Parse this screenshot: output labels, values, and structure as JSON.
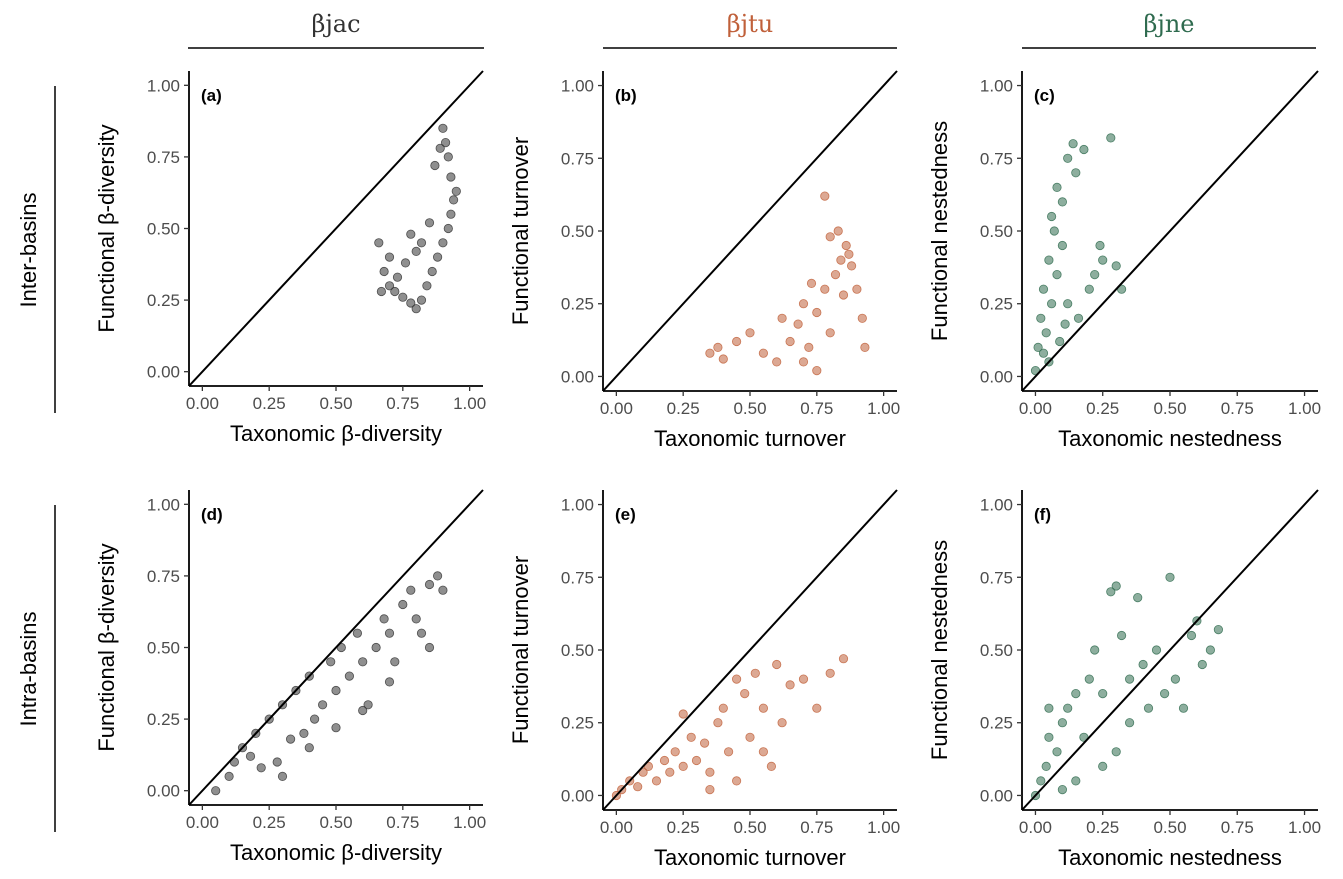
{
  "columns": [
    {
      "label": "βjac",
      "color": "#333333"
    },
    {
      "label": "βjtu",
      "color": "#c0603a"
    },
    {
      "label": "βjne",
      "color": "#2f6b4f"
    }
  ],
  "rows": [
    "Inter-basins",
    "Intra-basins"
  ],
  "ticks": [
    "0.00",
    "0.25",
    "0.50",
    "0.75",
    "1.00"
  ],
  "chart_data": [
    {
      "type": "scatter",
      "panel": "(a)",
      "xlabel": "Taxonomic β-diversity",
      "ylabel": "Functional β-diversity",
      "xlim": [
        0,
        1
      ],
      "ylim": [
        0,
        1
      ],
      "color": "#333333",
      "diagonal": true,
      "series": [
        {
          "x": [
            0.66,
            0.68,
            0.7,
            0.72,
            0.75,
            0.78,
            0.8,
            0.82,
            0.84,
            0.86,
            0.88,
            0.9,
            0.92,
            0.93,
            0.94,
            0.95,
            0.87,
            0.89,
            0.91,
            0.9,
            0.92,
            0.93,
            0.85,
            0.8,
            0.76,
            0.73,
            0.7,
            0.67,
            0.78,
            0.82
          ],
          "y": [
            0.45,
            0.35,
            0.3,
            0.28,
            0.26,
            0.24,
            0.22,
            0.25,
            0.3,
            0.35,
            0.4,
            0.45,
            0.5,
            0.55,
            0.6,
            0.63,
            0.72,
            0.78,
            0.8,
            0.85,
            0.75,
            0.68,
            0.52,
            0.42,
            0.38,
            0.33,
            0.4,
            0.28,
            0.48,
            0.45
          ]
        }
      ]
    },
    {
      "type": "scatter",
      "panel": "(b)",
      "xlabel": "Taxonomic turnover",
      "ylabel": "Functional turnover",
      "xlim": [
        0,
        1
      ],
      "ylim": [
        0,
        1
      ],
      "color": "#c0603a",
      "diagonal": true,
      "series": [
        {
          "x": [
            0.35,
            0.38,
            0.4,
            0.45,
            0.5,
            0.55,
            0.6,
            0.62,
            0.65,
            0.68,
            0.7,
            0.72,
            0.75,
            0.78,
            0.8,
            0.82,
            0.84,
            0.85,
            0.86,
            0.88,
            0.9,
            0.92,
            0.93,
            0.7,
            0.75,
            0.8,
            0.83,
            0.87,
            0.78,
            0.73
          ],
          "y": [
            0.08,
            0.1,
            0.06,
            0.12,
            0.15,
            0.08,
            0.05,
            0.2,
            0.12,
            0.18,
            0.25,
            0.1,
            0.22,
            0.3,
            0.15,
            0.35,
            0.4,
            0.28,
            0.45,
            0.38,
            0.3,
            0.2,
            0.1,
            0.05,
            0.02,
            0.48,
            0.5,
            0.42,
            0.62,
            0.32
          ]
        }
      ]
    },
    {
      "type": "scatter",
      "panel": "(c)",
      "xlabel": "Taxonomic nestedness",
      "ylabel": "Functional nestedness",
      "xlim": [
        0,
        1
      ],
      "ylim": [
        0,
        1
      ],
      "color": "#2f6b4f",
      "diagonal": true,
      "series": [
        {
          "x": [
            0.0,
            0.01,
            0.02,
            0.03,
            0.04,
            0.05,
            0.06,
            0.07,
            0.08,
            0.1,
            0.12,
            0.14,
            0.15,
            0.18,
            0.2,
            0.22,
            0.25,
            0.28,
            0.3,
            0.32,
            0.1,
            0.12,
            0.08,
            0.06,
            0.16,
            0.24,
            0.05,
            0.09,
            0.11,
            0.03
          ],
          "y": [
            0.02,
            0.1,
            0.2,
            0.3,
            0.15,
            0.4,
            0.25,
            0.5,
            0.35,
            0.6,
            0.75,
            0.8,
            0.7,
            0.78,
            0.3,
            0.35,
            0.4,
            0.82,
            0.38,
            0.3,
            0.45,
            0.25,
            0.65,
            0.55,
            0.2,
            0.45,
            0.05,
            0.12,
            0.18,
            0.08
          ]
        }
      ]
    },
    {
      "type": "scatter",
      "panel": "(d)",
      "xlabel": "Taxonomic β-diversity",
      "ylabel": "Functional β-diversity",
      "xlim": [
        0,
        1
      ],
      "ylim": [
        0,
        1
      ],
      "color": "#333333",
      "diagonal": true,
      "series": [
        {
          "x": [
            0.05,
            0.1,
            0.12,
            0.15,
            0.18,
            0.2,
            0.22,
            0.25,
            0.28,
            0.3,
            0.33,
            0.35,
            0.38,
            0.4,
            0.42,
            0.45,
            0.48,
            0.5,
            0.52,
            0.55,
            0.58,
            0.6,
            0.62,
            0.65,
            0.68,
            0.7,
            0.72,
            0.75,
            0.78,
            0.8,
            0.82,
            0.85,
            0.88,
            0.9,
            0.3,
            0.4,
            0.5,
            0.6,
            0.7,
            0.85
          ],
          "y": [
            0.0,
            0.05,
            0.1,
            0.15,
            0.12,
            0.2,
            0.08,
            0.25,
            0.1,
            0.3,
            0.18,
            0.35,
            0.2,
            0.4,
            0.25,
            0.3,
            0.45,
            0.35,
            0.5,
            0.4,
            0.55,
            0.45,
            0.3,
            0.5,
            0.6,
            0.55,
            0.45,
            0.65,
            0.7,
            0.6,
            0.55,
            0.72,
            0.75,
            0.7,
            0.05,
            0.15,
            0.22,
            0.28,
            0.38,
            0.5
          ]
        }
      ]
    },
    {
      "type": "scatter",
      "panel": "(e)",
      "xlabel": "Taxonomic turnover",
      "ylabel": "Functional turnover",
      "xlim": [
        0,
        1
      ],
      "ylim": [
        0,
        1
      ],
      "color": "#c0603a",
      "diagonal": true,
      "series": [
        {
          "x": [
            0.0,
            0.02,
            0.05,
            0.08,
            0.1,
            0.12,
            0.15,
            0.18,
            0.2,
            0.22,
            0.25,
            0.28,
            0.3,
            0.33,
            0.35,
            0.38,
            0.4,
            0.42,
            0.45,
            0.48,
            0.5,
            0.52,
            0.55,
            0.58,
            0.6,
            0.62,
            0.65,
            0.7,
            0.75,
            0.8,
            0.85,
            0.45,
            0.55,
            0.35,
            0.25
          ],
          "y": [
            0.0,
            0.02,
            0.05,
            0.03,
            0.08,
            0.1,
            0.05,
            0.12,
            0.08,
            0.15,
            0.1,
            0.2,
            0.12,
            0.18,
            0.08,
            0.25,
            0.3,
            0.15,
            0.4,
            0.35,
            0.2,
            0.42,
            0.3,
            0.1,
            0.45,
            0.25,
            0.38,
            0.4,
            0.3,
            0.42,
            0.47,
            0.05,
            0.15,
            0.02,
            0.28
          ]
        }
      ]
    },
    {
      "type": "scatter",
      "panel": "(f)",
      "xlabel": "Taxonomic nestedness",
      "ylabel": "Functional nestedness",
      "xlim": [
        0,
        1
      ],
      "ylim": [
        0,
        1
      ],
      "color": "#2f6b4f",
      "diagonal": true,
      "series": [
        {
          "x": [
            0.0,
            0.02,
            0.04,
            0.05,
            0.08,
            0.1,
            0.12,
            0.15,
            0.18,
            0.2,
            0.22,
            0.25,
            0.28,
            0.3,
            0.32,
            0.35,
            0.38,
            0.4,
            0.42,
            0.45,
            0.48,
            0.5,
            0.52,
            0.55,
            0.58,
            0.6,
            0.62,
            0.65,
            0.68,
            0.25,
            0.3,
            0.35,
            0.15,
            0.1,
            0.05
          ],
          "y": [
            0.0,
            0.05,
            0.1,
            0.2,
            0.15,
            0.25,
            0.3,
            0.35,
            0.2,
            0.4,
            0.5,
            0.35,
            0.7,
            0.72,
            0.55,
            0.4,
            0.68,
            0.45,
            0.3,
            0.5,
            0.35,
            0.75,
            0.4,
            0.3,
            0.55,
            0.6,
            0.45,
            0.5,
            0.57,
            0.1,
            0.15,
            0.25,
            0.05,
            0.02,
            0.3
          ]
        }
      ]
    }
  ]
}
